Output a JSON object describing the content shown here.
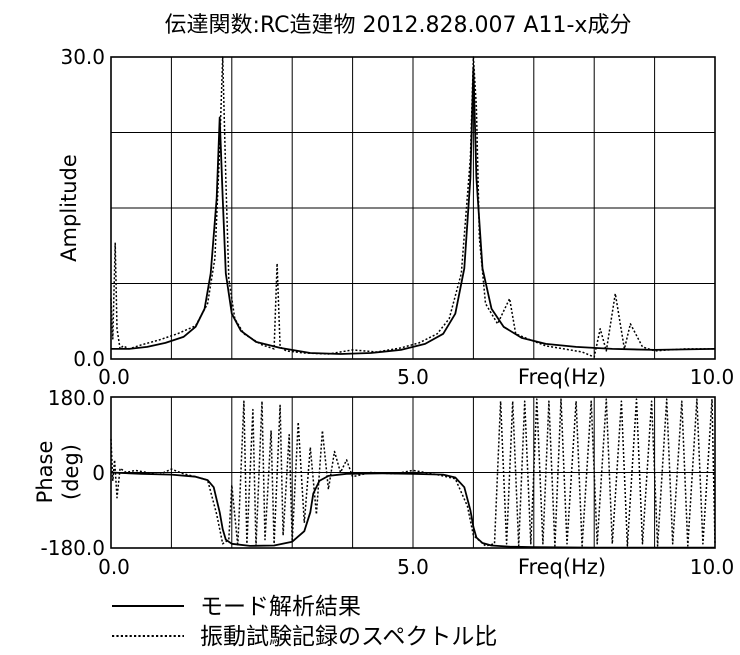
{
  "chart_data": {
    "type": "line",
    "title": "伝達関数:RC造建物 2012.828.007 A11-x成分",
    "legend": {
      "placement": "bottom-left",
      "entries": [
        {
          "label": "モード解析結果",
          "style": "solid"
        },
        {
          "label": "振動試験記録のスペクトル比",
          "style": "dotted"
        }
      ]
    },
    "panels": [
      {
        "id": "amplitude",
        "ylabel": "Amplitude",
        "xlabel": "Freq(Hz)",
        "xlim": [
          0,
          10
        ],
        "ylim": [
          0,
          30
        ],
        "y_tick_labels": [
          "30.0",
          "0.0"
        ],
        "x_tick_labels": [
          "0.0",
          "5.0",
          "10.0"
        ],
        "grid": true,
        "series": [
          {
            "name": "モード解析結果",
            "style": "solid",
            "x": [
              0.0,
              0.3,
              0.6,
              0.9,
              1.2,
              1.4,
              1.55,
              1.65,
              1.75,
              1.8,
              1.85,
              1.9,
              2.0,
              2.15,
              2.4,
              2.8,
              3.3,
              3.8,
              4.3,
              4.8,
              5.2,
              5.5,
              5.7,
              5.85,
              5.95,
              6.0,
              6.05,
              6.15,
              6.3,
              6.5,
              6.8,
              7.2,
              7.7,
              8.3,
              9.0,
              10.0
            ],
            "y": [
              1.0,
              1.0,
              1.2,
              1.6,
              2.2,
              3.2,
              5.0,
              8.5,
              16.0,
              24.0,
              16.0,
              8.5,
              4.5,
              2.8,
              1.7,
              1.1,
              0.6,
              0.5,
              0.6,
              0.9,
              1.5,
              2.5,
              4.5,
              9.0,
              18.0,
              29.0,
              18.0,
              9.0,
              5.0,
              3.2,
              2.1,
              1.5,
              1.2,
              1.0,
              0.9,
              1.0
            ]
          },
          {
            "name": "振動試験記録のスペクトル比",
            "style": "dotted",
            "x": [
              0.0,
              0.03,
              0.07,
              0.1,
              0.15,
              0.2,
              0.3,
              0.5,
              0.8,
              1.1,
              1.4,
              1.6,
              1.72,
              1.8,
              1.85,
              1.9,
              1.95,
              2.05,
              2.2,
              2.5,
              2.7,
              2.75,
              2.8,
              2.9,
              3.2,
              3.6,
              4.0,
              4.4,
              4.8,
              5.1,
              5.4,
              5.6,
              5.8,
              5.95,
              6.0,
              6.05,
              6.1,
              6.2,
              6.4,
              6.6,
              6.7,
              6.9,
              7.2,
              7.5,
              7.8,
              8.0,
              8.1,
              8.2,
              8.35,
              8.5,
              8.6,
              8.8,
              9.0,
              9.5,
              10.0
            ],
            "y": [
              6.0,
              2.0,
              11.5,
              3.0,
              1.0,
              1.3,
              1.0,
              1.4,
              1.9,
              2.5,
              3.3,
              5.5,
              10.0,
              21.0,
              30.0,
              18.0,
              8.0,
              4.0,
              2.5,
              1.4,
              1.0,
              9.5,
              1.2,
              0.8,
              0.6,
              0.5,
              0.9,
              0.7,
              1.1,
              1.6,
              2.5,
              4.0,
              8.5,
              20.0,
              30.0,
              25.0,
              12.0,
              5.5,
              3.5,
              6.0,
              2.5,
              2.0,
              1.3,
              1.0,
              0.7,
              0.2,
              3.0,
              0.8,
              6.5,
              1.0,
              3.5,
              1.2,
              0.8,
              1.0,
              1.0
            ]
          }
        ]
      },
      {
        "id": "phase",
        "ylabel": "Phase (deg)",
        "ylabel_lines": [
          "Phase",
          "(deg)"
        ],
        "xlabel": "Freq(Hz)",
        "xlim": [
          0,
          10
        ],
        "ylim": [
          -180,
          180
        ],
        "y_tick_labels": [
          "180.0",
          "0",
          "-180.0"
        ],
        "x_tick_labels": [
          "0.0",
          "5.0",
          "10.0"
        ],
        "grid": true,
        "series": [
          {
            "name": "モード解析結果",
            "style": "solid",
            "x": [
              0.0,
              0.5,
              1.0,
              1.4,
              1.6,
              1.7,
              1.75,
              1.8,
              1.85,
              1.9,
              2.0,
              2.3,
              2.7,
              3.0,
              3.2,
              3.3,
              3.35,
              3.45,
              3.6,
              3.9,
              4.5,
              5.0,
              5.5,
              5.7,
              5.85,
              5.95,
              6.0,
              6.05,
              6.15,
              6.3,
              6.6,
              7.0,
              8.0,
              9.0,
              10.0
            ],
            "y": [
              0,
              -3,
              -5,
              -10,
              -18,
              -35,
              -65,
              -95,
              -135,
              -160,
              -170,
              -175,
              -174,
              -165,
              -140,
              -95,
              -50,
              -20,
              -8,
              -3,
              -2,
              -3,
              -5,
              -12,
              -35,
              -90,
              -130,
              -155,
              -168,
              -174,
              -177,
              -178,
              -179,
              -179,
              -179
            ]
          },
          {
            "name": "振動試験記録のスペクトル比",
            "style": "dotted",
            "x": [
              0.0,
              0.03,
              0.06,
              0.1,
              0.15,
              0.25,
              0.4,
              0.6,
              0.8,
              1.0,
              1.2,
              1.4,
              1.6,
              1.75,
              1.85,
              1.95,
              2.0,
              2.1,
              2.2,
              2.25,
              2.35,
              2.4,
              2.5,
              2.55,
              2.65,
              2.7,
              2.8,
              2.85,
              2.95,
              3.0,
              3.1,
              3.2,
              3.3,
              3.4,
              3.5,
              3.6,
              3.7,
              3.8,
              3.9,
              4.0,
              4.3,
              4.7,
              5.0,
              5.4,
              5.7,
              5.9,
              6.0,
              6.2,
              6.35,
              6.45,
              6.55,
              6.65,
              6.75,
              6.85,
              6.95,
              7.05,
              7.15,
              7.25,
              7.35,
              7.45,
              7.55,
              7.7,
              7.8,
              7.95,
              8.05,
              8.2,
              8.3,
              8.45,
              8.55,
              8.7,
              8.8,
              8.95,
              9.05,
              9.2,
              9.3,
              9.45,
              9.55,
              9.7,
              9.8,
              9.95,
              10.0
            ],
            "y": [
              80,
              -20,
              30,
              -60,
              10,
              0,
              5,
              0,
              -5,
              8,
              -3,
              -10,
              -18,
              -100,
              -170,
              -160,
              -30,
              -175,
              170,
              -170,
              150,
              -175,
              170,
              -160,
              100,
              -170,
              160,
              -150,
              90,
              -165,
              120,
              -120,
              60,
              -100,
              100,
              -40,
              50,
              0,
              30,
              -10,
              0,
              -3,
              5,
              -5,
              -15,
              -80,
              -150,
              -175,
              -170,
              170,
              -170,
              170,
              -175,
              170,
              -170,
              175,
              -170,
              170,
              -175,
              175,
              -170,
              170,
              -175,
              170,
              -170,
              175,
              -170,
              170,
              -175,
              175,
              -170,
              170,
              -175,
              175,
              -170,
              170,
              -175,
              175,
              -170,
              175,
              -170
            ]
          }
        ]
      }
    ]
  }
}
